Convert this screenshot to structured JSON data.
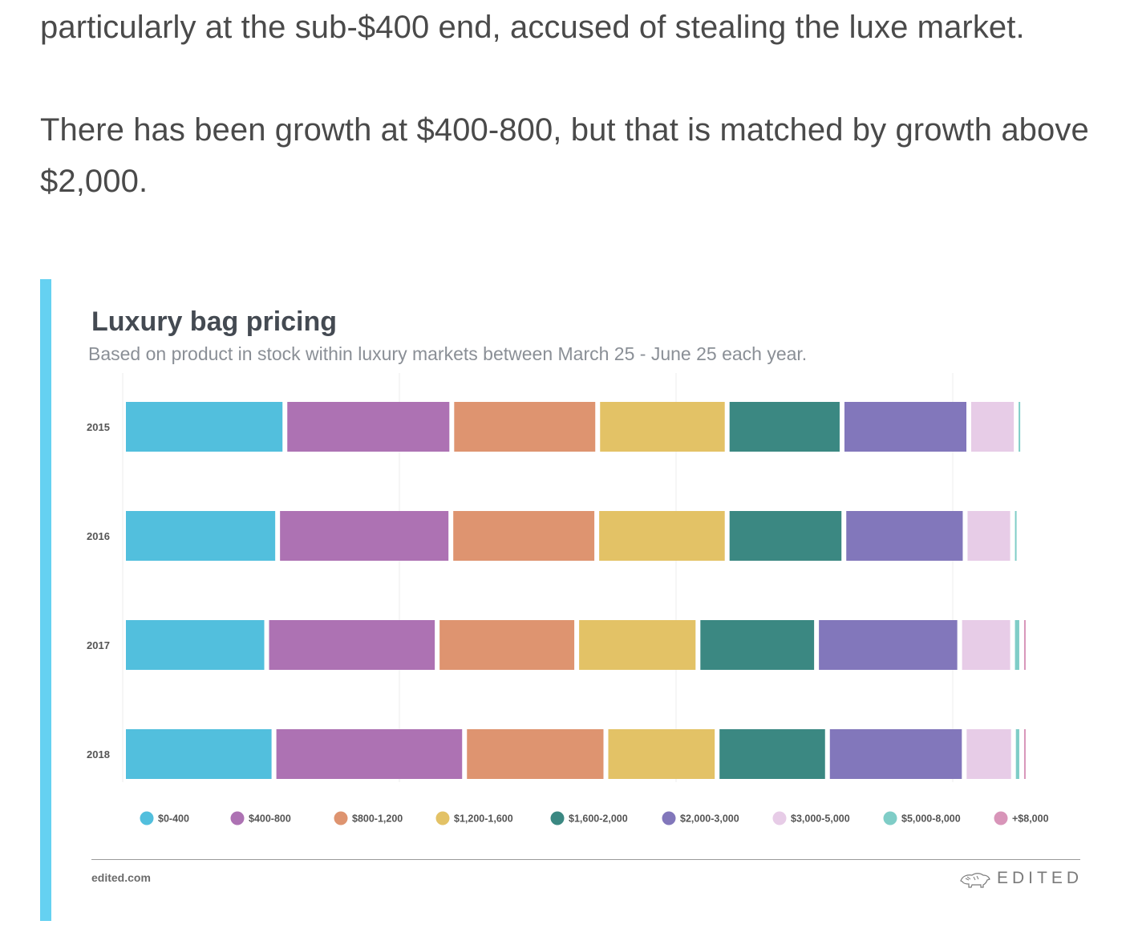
{
  "article": {
    "p1": "particularly at the sub-$400 end, accused of stealing the luxe market.",
    "p2": "There has been growth at $400-800, but that is matched by growth above $2,000."
  },
  "footer": {
    "link": "edited.com",
    "brand": "EDITED"
  },
  "colors": {
    "accent_bar": "#65d1f1"
  },
  "chart_data": {
    "type": "bar",
    "orientation": "horizontal",
    "stacked": true,
    "title": "Luxury bag pricing",
    "subtitle": "Based on product in stock within luxury markets between March 25 - June 25 each year.",
    "categories": [
      "2015",
      "2016",
      "2017",
      "2018"
    ],
    "xlim": [
      0,
      100
    ],
    "grid": true,
    "legend": "bottom",
    "series": [
      {
        "name": "$0-400",
        "color": "#52bfdd",
        "values": [
          17.7,
          16.9,
          15.7,
          16.5
        ]
      },
      {
        "name": "$400-800",
        "color": "#ad72b3",
        "values": [
          18.3,
          19.0,
          18.7,
          20.9
        ]
      },
      {
        "name": "$800-1,200",
        "color": "#de9470",
        "values": [
          16.0,
          16.0,
          15.3,
          15.5
        ]
      },
      {
        "name": "$1,200-1,600",
        "color": "#e3c266",
        "values": [
          14.2,
          14.3,
          13.3,
          12.2
        ]
      },
      {
        "name": "$1,600-2,000",
        "color": "#3b8882",
        "values": [
          12.6,
          12.8,
          13.0,
          12.1
        ]
      },
      {
        "name": "$2,000-3,000",
        "color": "#8277bb",
        "values": [
          13.9,
          13.3,
          15.7,
          15.0
        ]
      },
      {
        "name": "$3,000-5,000",
        "color": "#e7cce7",
        "values": [
          5.2,
          5.2,
          5.8,
          5.4
        ]
      },
      {
        "name": "$5,000-8,000",
        "color": "#7fcdc7",
        "values": [
          0.6,
          0.7,
          1.0,
          0.9
        ]
      },
      {
        "name": "+$8,000",
        "color": "#d895b9",
        "values": [
          0,
          0,
          0.2,
          0.2
        ]
      }
    ]
  }
}
